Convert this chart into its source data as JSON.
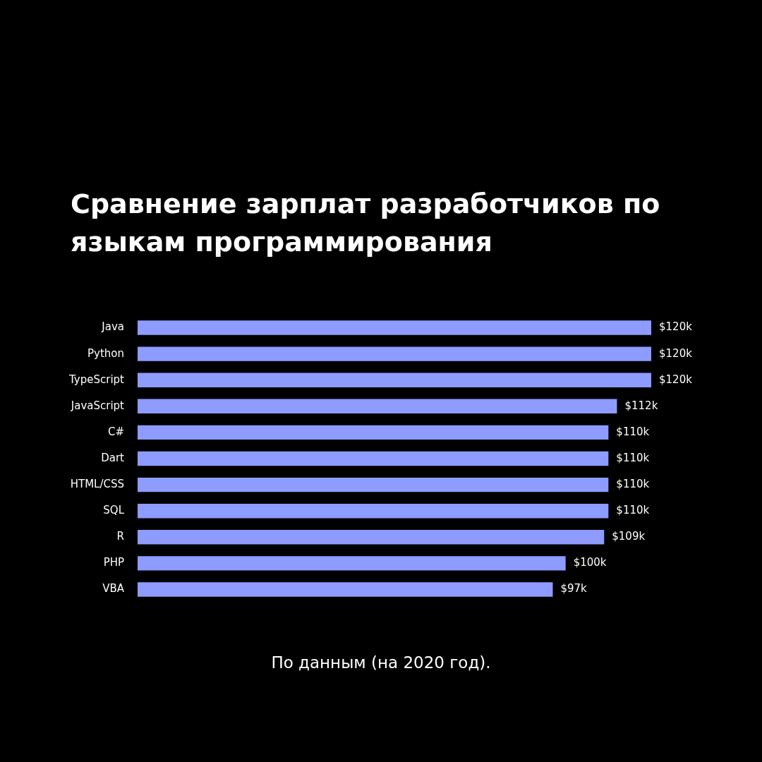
{
  "chart_data": {
    "type": "bar",
    "orientation": "horizontal",
    "title": "Сравнение зарплат разработчиков по языкам программирования",
    "categories": [
      "Java",
      "Python",
      "TypeScript",
      "JavaScript",
      "C#",
      "Dart",
      "HTML/CSS",
      "SQL",
      "R",
      "PHP",
      "VBA"
    ],
    "values": [
      120,
      120,
      120,
      112,
      110,
      110,
      110,
      110,
      109,
      100,
      97
    ],
    "value_labels": [
      "$120k",
      "$120k",
      "$120k",
      "$112k",
      "$110k",
      "$110k",
      "$110k",
      "$110k",
      "$109k",
      "$100k",
      "$97k"
    ],
    "color": "#8e9bff",
    "xlim": [
      0,
      120
    ],
    "tick_labels": "y",
    "legend": false,
    "annotations": [
      "По данным (на 2020 год)."
    ]
  }
}
